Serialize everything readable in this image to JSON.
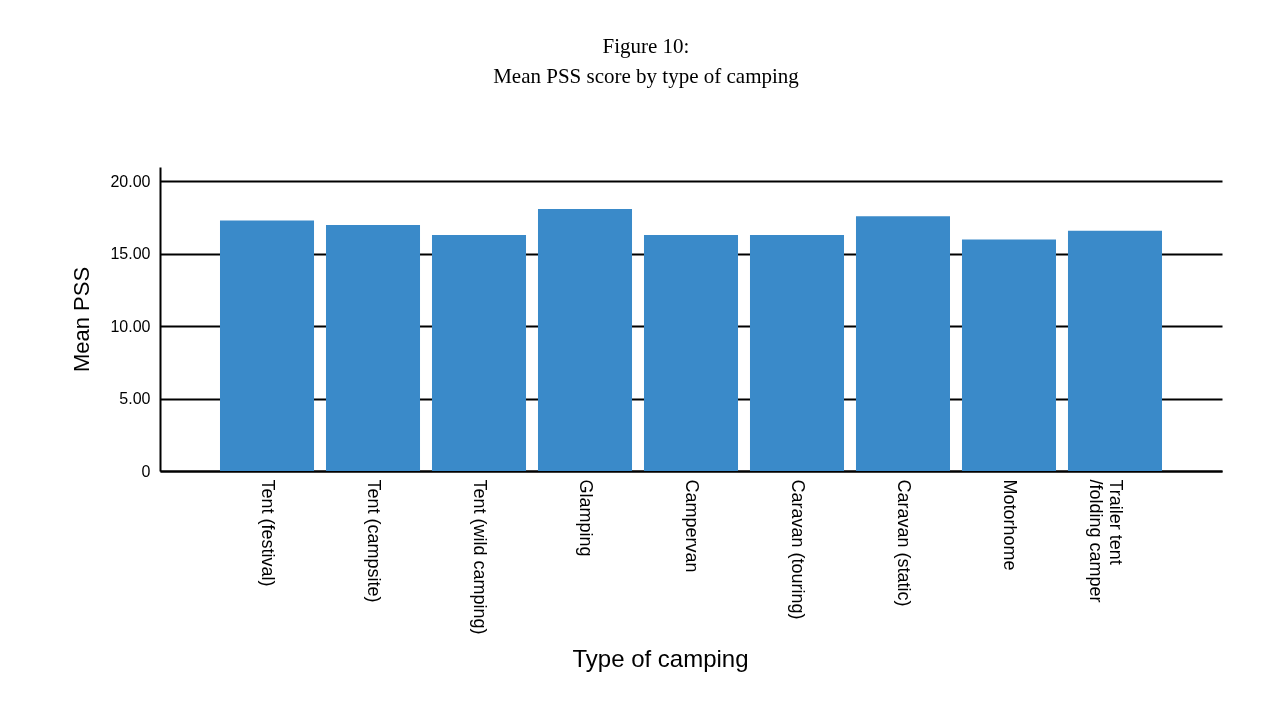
{
  "chart_data": {
    "type": "bar",
    "title": "Figure 10:\nMean PSS score by type of camping",
    "xlabel": "Type of camping",
    "ylabel": "Mean PSS",
    "categories": [
      "Tent (festival)",
      "Tent (campsite)",
      "Tent (wild camping)",
      "Glamping",
      "Campervan",
      "Caravan (touring)",
      "Caravan (static)",
      "Motorhome",
      "Trailer tent\n/folding camper"
    ],
    "values": [
      17.3,
      17.0,
      16.3,
      18.1,
      16.3,
      16.3,
      17.6,
      16.0,
      16.6
    ],
    "color": "#3a8ac9",
    "ylim": [
      0,
      21
    ],
    "yticks": [
      0,
      {
        "value": 5,
        "label": "5.00"
      },
      {
        "value": 10,
        "label": "10.00"
      },
      {
        "value": 15,
        "label": "15.00"
      },
      {
        "value": 20,
        "label": "20.00"
      }
    ],
    "grid": "y"
  }
}
